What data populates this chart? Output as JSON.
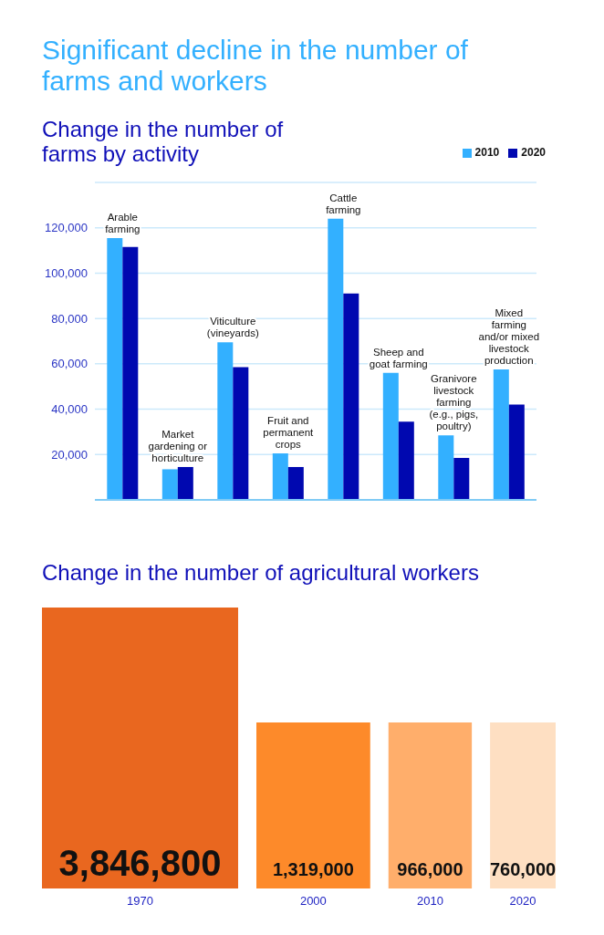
{
  "chart_data": [
    {
      "type": "bar",
      "title": "Significant decline in the number of farms and workers",
      "subtitle": "Change in the number of farms by activity",
      "categories": [
        "Arable farming",
        "Market gardening or horticulture",
        "Viticulture (vineyards)",
        "Fruit and permanent crops",
        "Cattle farming",
        "Sheep and goat farming",
        "Granivore livestock farming (e.g., pigs, poultry)",
        "Mixed farming and/or mixed livestock production"
      ],
      "series": [
        {
          "name": "2010",
          "color": "#33b0ff",
          "values": [
            115500,
            13500,
            69500,
            20500,
            124000,
            56000,
            28500,
            57500
          ]
        },
        {
          "name": "2020",
          "color": "#0008b0",
          "values": [
            111500,
            14500,
            58500,
            14500,
            91000,
            34500,
            18500,
            42000
          ]
        }
      ],
      "ylim": [
        0,
        140000
      ],
      "yticks": [
        {
          "value": 0,
          "label": null
        },
        {
          "value": 20000,
          "label": "20,000"
        },
        {
          "value": 40000,
          "label": "40,000"
        },
        {
          "value": 60000,
          "label": "60,000"
        },
        {
          "value": 80000,
          "label": "80,000"
        },
        {
          "value": 100000,
          "label": "100,000"
        },
        {
          "value": 120000,
          "label": "120,000"
        },
        {
          "value": 140000,
          "label": null
        }
      ],
      "grid": "y",
      "legend": "top right"
    },
    {
      "type": "other",
      "title": "Change in the number of agricultural workers",
      "categories": [
        "1970",
        "2000",
        "2010",
        "2020"
      ],
      "values": [
        3846800,
        1319000,
        966000,
        760000
      ],
      "colors": [
        "#e9671f",
        "#fd8a2a",
        "#ffae6b",
        "#fedfc2"
      ],
      "value_labels": [
        "3,846,800",
        "1,319,000",
        "966,000",
        "760,000"
      ]
    }
  ]
}
